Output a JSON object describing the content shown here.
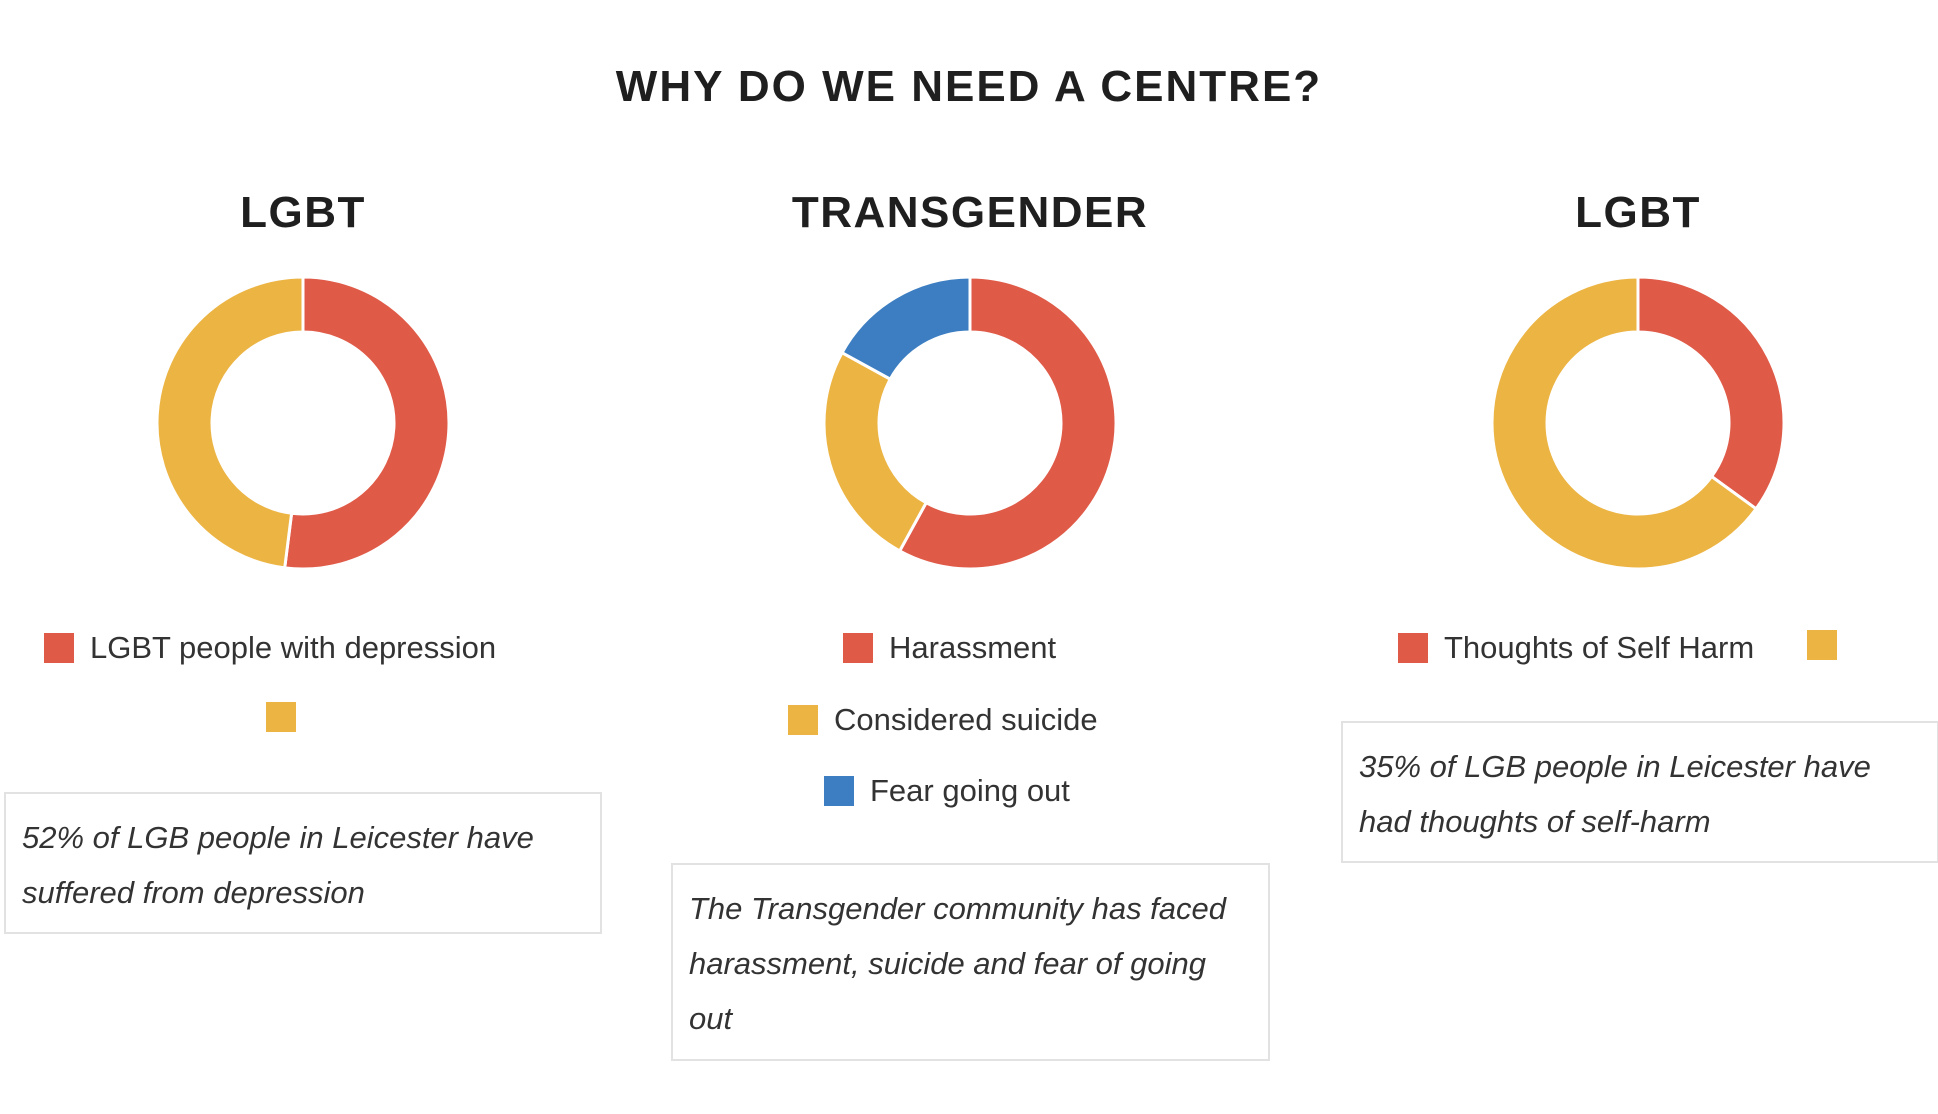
{
  "page_title": "WHY DO WE NEED A CENTRE?",
  "colors": {
    "red": "#e05a48",
    "yellow": "#ecb443",
    "blue": "#3c7ec1"
  },
  "charts": [
    {
      "title": "LGBT",
      "legend": [
        "LGBT people with depression",
        ""
      ],
      "note": "52% of LGB people in Leicester have suffered from depression"
    },
    {
      "title": "TRANSGENDER",
      "legend": [
        "Harassment",
        "Considered suicide",
        "Fear going out"
      ],
      "note": "The Transgender community has faced harassment, suicide and fear of going out"
    },
    {
      "title": "LGBT",
      "legend": [
        "Thoughts of Self Harm",
        ""
      ],
      "note": "35% of LGB people in Leicester have had thoughts of self-harm"
    }
  ],
  "chart_data": [
    {
      "type": "pie",
      "title": "LGBT",
      "series": [
        {
          "name": "LGBT people with depression",
          "value": 52,
          "color": "#e05a48"
        },
        {
          "name": "",
          "value": 48,
          "color": "#ecb443"
        }
      ]
    },
    {
      "type": "pie",
      "title": "TRANSGENDER",
      "series": [
        {
          "name": "Harassment",
          "value": 58,
          "color": "#e05a48"
        },
        {
          "name": "Considered suicide",
          "value": 25,
          "color": "#ecb443"
        },
        {
          "name": "Fear going out",
          "value": 17,
          "color": "#3c7ec1"
        }
      ]
    },
    {
      "type": "pie",
      "title": "LGBT",
      "series": [
        {
          "name": "Thoughts of Self Harm",
          "value": 35,
          "color": "#e05a48"
        },
        {
          "name": "",
          "value": 65,
          "color": "#ecb443"
        }
      ]
    }
  ]
}
